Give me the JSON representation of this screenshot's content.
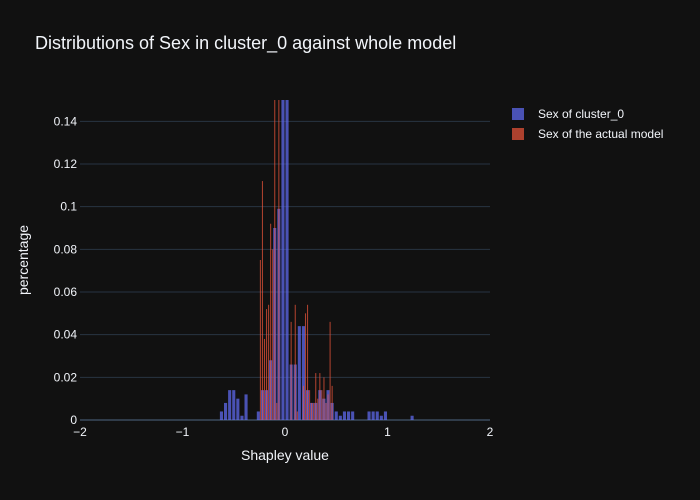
{
  "chart_data": {
    "type": "bar",
    "title": "Distributions of Sex in cluster_0 against whole model",
    "xlabel": "Shapley value",
    "ylabel": "percentage",
    "xlim": [
      -2,
      2
    ],
    "ylim": [
      0,
      0.15
    ],
    "xticks": [
      -2,
      -1,
      0,
      1,
      2
    ],
    "xtick_labels": [
      "−2",
      "−1",
      "0",
      "1",
      "2"
    ],
    "yticks": [
      0,
      0.02,
      0.04,
      0.06,
      0.08,
      0.1,
      0.12,
      0.14
    ],
    "ytick_labels": [
      "0",
      "0.02",
      "0.04",
      "0.06",
      "0.08",
      "0.1",
      "0.12",
      "0.14"
    ],
    "grid": true,
    "legend_position": "top-right",
    "series": [
      {
        "name": "Sex of cluster_0",
        "color": "#636efa",
        "bars": [
          {
            "x0": -0.64,
            "x1": -0.6,
            "y": 0.004
          },
          {
            "x0": -0.6,
            "x1": -0.56,
            "y": 0.008
          },
          {
            "x0": -0.56,
            "x1": -0.52,
            "y": 0.014
          },
          {
            "x0": -0.52,
            "x1": -0.48,
            "y": 0.014
          },
          {
            "x0": -0.48,
            "x1": -0.44,
            "y": 0.01
          },
          {
            "x0": -0.44,
            "x1": -0.4,
            "y": 0.002
          },
          {
            "x0": -0.4,
            "x1": -0.36,
            "y": 0.012
          },
          {
            "x0": -0.28,
            "x1": -0.24,
            "y": 0.004
          },
          {
            "x0": -0.24,
            "x1": -0.2,
            "y": 0.014
          },
          {
            "x0": -0.2,
            "x1": -0.16,
            "y": 0.014
          },
          {
            "x0": -0.16,
            "x1": -0.12,
            "y": 0.028
          },
          {
            "x0": -0.12,
            "x1": -0.08,
            "y": 0.09
          },
          {
            "x0": -0.08,
            "x1": -0.04,
            "y": 0.099
          },
          {
            "x0": -0.04,
            "x1": 0.0,
            "y": 0.15
          },
          {
            "x0": 0.0,
            "x1": 0.04,
            "y": 0.15
          },
          {
            "x0": 0.04,
            "x1": 0.08,
            "y": 0.026
          },
          {
            "x0": 0.08,
            "x1": 0.12,
            "y": 0.026
          },
          {
            "x0": 0.12,
            "x1": 0.16,
            "y": 0.044
          },
          {
            "x0": 0.16,
            "x1": 0.2,
            "y": 0.044
          },
          {
            "x0": 0.2,
            "x1": 0.24,
            "y": 0.014
          },
          {
            "x0": 0.24,
            "x1": 0.28,
            "y": 0.008
          },
          {
            "x0": 0.28,
            "x1": 0.32,
            "y": 0.008
          },
          {
            "x0": 0.32,
            "x1": 0.36,
            "y": 0.014
          },
          {
            "x0": 0.36,
            "x1": 0.4,
            "y": 0.01
          },
          {
            "x0": 0.4,
            "x1": 0.44,
            "y": 0.014
          },
          {
            "x0": 0.44,
            "x1": 0.48,
            "y": 0.008
          },
          {
            "x0": 0.48,
            "x1": 0.52,
            "y": 0.004
          },
          {
            "x0": 0.52,
            "x1": 0.56,
            "y": 0.002
          },
          {
            "x0": 0.56,
            "x1": 0.6,
            "y": 0.004
          },
          {
            "x0": 0.6,
            "x1": 0.64,
            "y": 0.004
          },
          {
            "x0": 0.64,
            "x1": 0.68,
            "y": 0.004
          },
          {
            "x0": 0.8,
            "x1": 0.84,
            "y": 0.004
          },
          {
            "x0": 0.84,
            "x1": 0.88,
            "y": 0.004
          },
          {
            "x0": 0.88,
            "x1": 0.92,
            "y": 0.004
          },
          {
            "x0": 0.92,
            "x1": 0.96,
            "y": 0.002
          },
          {
            "x0": 0.96,
            "x1": 1.0,
            "y": 0.004
          },
          {
            "x0": 1.22,
            "x1": 1.26,
            "y": 0.002
          }
        ]
      },
      {
        "name": "Sex of the actual model",
        "color": "#ef553b",
        "bars": [
          {
            "x0": -0.25,
            "x1": -0.23,
            "y": 0.075
          },
          {
            "x0": -0.23,
            "x1": -0.21,
            "y": 0.112
          },
          {
            "x0": -0.21,
            "x1": -0.19,
            "y": 0.038
          },
          {
            "x0": -0.19,
            "x1": -0.17,
            "y": 0.052
          },
          {
            "x0": -0.17,
            "x1": -0.15,
            "y": 0.054
          },
          {
            "x0": -0.15,
            "x1": -0.13,
            "y": 0.092
          },
          {
            "x0": -0.13,
            "x1": -0.11,
            "y": 0.08
          },
          {
            "x0": -0.11,
            "x1": -0.09,
            "y": 0.15
          },
          {
            "x0": -0.09,
            "x1": -0.07,
            "y": 0.008
          },
          {
            "x0": -0.07,
            "x1": -0.05,
            "y": 0.15
          },
          {
            "x0": 0.05,
            "x1": 0.07,
            "y": 0.046
          },
          {
            "x0": 0.09,
            "x1": 0.11,
            "y": 0.054
          },
          {
            "x0": 0.11,
            "x1": 0.13,
            "y": 0.004
          },
          {
            "x0": 0.17,
            "x1": 0.19,
            "y": 0.016
          },
          {
            "x0": 0.19,
            "x1": 0.21,
            "y": 0.05
          },
          {
            "x0": 0.21,
            "x1": 0.23,
            "y": 0.054
          },
          {
            "x0": 0.23,
            "x1": 0.25,
            "y": 0.014
          },
          {
            "x0": 0.25,
            "x1": 0.27,
            "y": 0.008
          },
          {
            "x0": 0.27,
            "x1": 0.29,
            "y": 0.008
          },
          {
            "x0": 0.29,
            "x1": 0.31,
            "y": 0.022
          },
          {
            "x0": 0.31,
            "x1": 0.33,
            "y": 0.01
          },
          {
            "x0": 0.33,
            "x1": 0.35,
            "y": 0.022
          },
          {
            "x0": 0.35,
            "x1": 0.37,
            "y": 0.014
          },
          {
            "x0": 0.37,
            "x1": 0.39,
            "y": 0.02
          },
          {
            "x0": 0.39,
            "x1": 0.41,
            "y": 0.008
          },
          {
            "x0": 0.41,
            "x1": 0.43,
            "y": 0.012
          },
          {
            "x0": 0.43,
            "x1": 0.45,
            "y": 0.046
          },
          {
            "x0": 0.45,
            "x1": 0.47,
            "y": 0.016
          }
        ]
      }
    ]
  }
}
